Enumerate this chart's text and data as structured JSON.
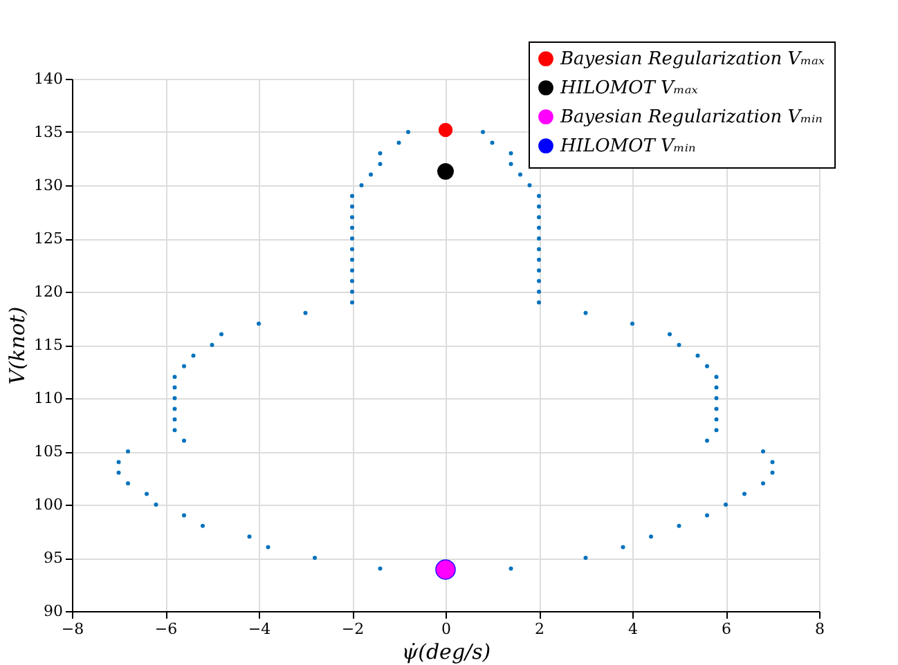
{
  "chart_data": {
    "type": "scatter",
    "xlabel": "ψ̇(deg/s)",
    "ylabel": "V(knot)",
    "xlim": [
      -8,
      8
    ],
    "xticks": [
      -8,
      -6,
      -4,
      -2,
      0,
      2,
      4,
      6,
      8
    ],
    "ylim": [
      90,
      140
    ],
    "yticks": [
      90,
      95,
      100,
      105,
      110,
      115,
      120,
      125,
      130,
      135,
      140
    ],
    "grid": true,
    "legend": "top right",
    "marker": "circle",
    "series": [
      {
        "color": "#0072bd",
        "x": [
          -0.8,
          0.8,
          -1.0,
          1.0,
          -1.4,
          1.4,
          -1.4,
          1.4,
          -1.6,
          1.6,
          -1.8,
          1.8,
          -2.0,
          2.0,
          -2.0,
          2.0,
          -2.0,
          2.0,
          -2.0,
          2.0,
          -2.0,
          2.0,
          -2.0,
          2.0,
          -2.0,
          2.0,
          -2.0,
          2.0,
          -2.0,
          2.0,
          -2.0,
          2.0,
          -2.0,
          2.0,
          -3.0,
          3.0,
          -4.0,
          4.0,
          -4.8,
          4.8,
          -5.0,
          5.0,
          -5.4,
          5.4,
          -5.6,
          5.6,
          -5.8,
          5.8,
          -5.8,
          5.8,
          -5.8,
          5.8,
          -5.8,
          5.8,
          -5.8,
          5.8,
          -5.8,
          5.8,
          -5.6,
          5.6,
          -6.8,
          6.8,
          -7.0,
          7.0,
          -7.0,
          7.0,
          -6.8,
          6.8,
          -6.4,
          6.4,
          -6.2,
          6.0,
          -5.6,
          5.6,
          -5.2,
          5.0,
          -4.2,
          4.4,
          -3.8,
          3.8,
          -2.8,
          3.0,
          -1.4,
          1.4
        ],
        "values": [
          135,
          135,
          134,
          134,
          133,
          133,
          132,
          132,
          131,
          131,
          130,
          130,
          129,
          129,
          128,
          128,
          127,
          127,
          126,
          126,
          125,
          125,
          124,
          124,
          123,
          123,
          122,
          122,
          121,
          121,
          120,
          120,
          119,
          119,
          118,
          118,
          117,
          117,
          116,
          116,
          115,
          115,
          114,
          114,
          113,
          113,
          112,
          112,
          111,
          111,
          110,
          110,
          109,
          109,
          108,
          108,
          107,
          107,
          106,
          106,
          105,
          105,
          104,
          104,
          103,
          103,
          102,
          102,
          101,
          101,
          100,
          100,
          99,
          99,
          98,
          98,
          97,
          97,
          96,
          96,
          95,
          95,
          94,
          94
        ]
      },
      {
        "name": "Bayesian Regularization Vₘₐₓ",
        "color": "#ff0000",
        "x": [
          0
        ],
        "values": [
          135.2
        ]
      },
      {
        "name": "HILOMOT Vₘₐₓ",
        "color": "#000000",
        "x": [
          0
        ],
        "values": [
          131.3
        ]
      },
      {
        "name": "Bayesian Regularization Vₘᵢₙ",
        "color": "#ff00ff",
        "x": [
          0
        ],
        "values": [
          93.9
        ]
      },
      {
        "name": "HILOMOT Vₘᵢₙ",
        "color": "#0000ff",
        "x": [
          0
        ],
        "values": [
          93.9
        ]
      }
    ]
  }
}
